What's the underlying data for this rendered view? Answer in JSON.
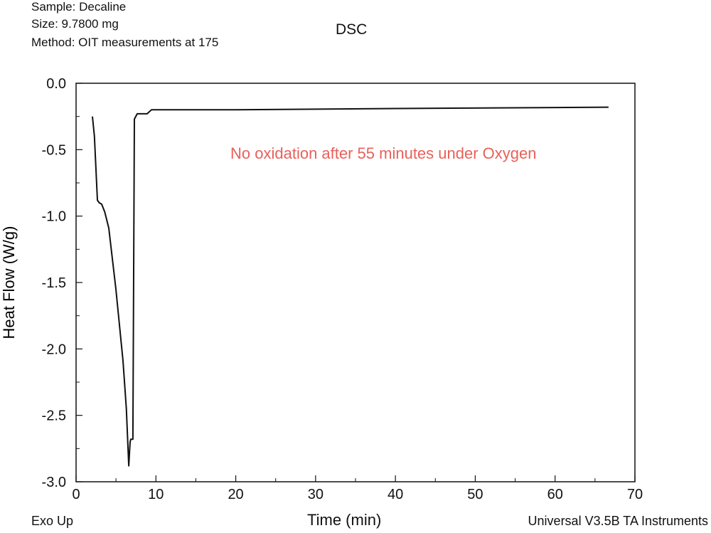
{
  "header": {
    "sample": "Sample: Decaline",
    "size": "Size: 9.7800 mg",
    "method": "Method: OIT measurements at 175"
  },
  "footer": {
    "exo": "Exo Up",
    "software": "Universal V3.5B TA Instruments"
  },
  "chart_data": {
    "type": "line",
    "title": "DSC",
    "xlabel": "Time (min)",
    "ylabel": "Heat Flow (W/g)",
    "xlim": [
      0,
      70
    ],
    "ylim": [
      -3.0,
      0.0
    ],
    "xticks": [
      0,
      10,
      20,
      30,
      40,
      50,
      60,
      70
    ],
    "xtick_labels": [
      "0",
      "10",
      "20",
      "30",
      "40",
      "50",
      "60",
      "70"
    ],
    "yticks": [
      0.0,
      -0.5,
      -1.0,
      -1.5,
      -2.0,
      -2.5,
      -3.0
    ],
    "ytick_labels": [
      "0.0",
      "-0.5",
      "-1.0",
      "-1.5",
      "-2.0",
      "-2.5",
      "-3.0"
    ],
    "grid": false,
    "annotation": "No oxidation after 55 minutes under Oxygen",
    "annotation_color": "#e8605a",
    "series": [
      {
        "name": "Heat Flow",
        "color": "#111111",
        "x": [
          2.05,
          2.3,
          2.67,
          2.9,
          3.21,
          3.6,
          4.1,
          4.99,
          5.88,
          6.3,
          6.6,
          6.77,
          6.85,
          7.12,
          7.3,
          7.66,
          8.9,
          9.44,
          20,
          40,
          66.7
        ],
        "y": [
          -0.25,
          -0.4,
          -0.88,
          -0.9,
          -0.91,
          -0.97,
          -1.09,
          -1.55,
          -2.09,
          -2.45,
          -2.88,
          -2.7,
          -2.68,
          -2.68,
          -0.27,
          -0.23,
          -0.23,
          -0.2,
          -0.2,
          -0.19,
          -0.18
        ]
      }
    ]
  }
}
